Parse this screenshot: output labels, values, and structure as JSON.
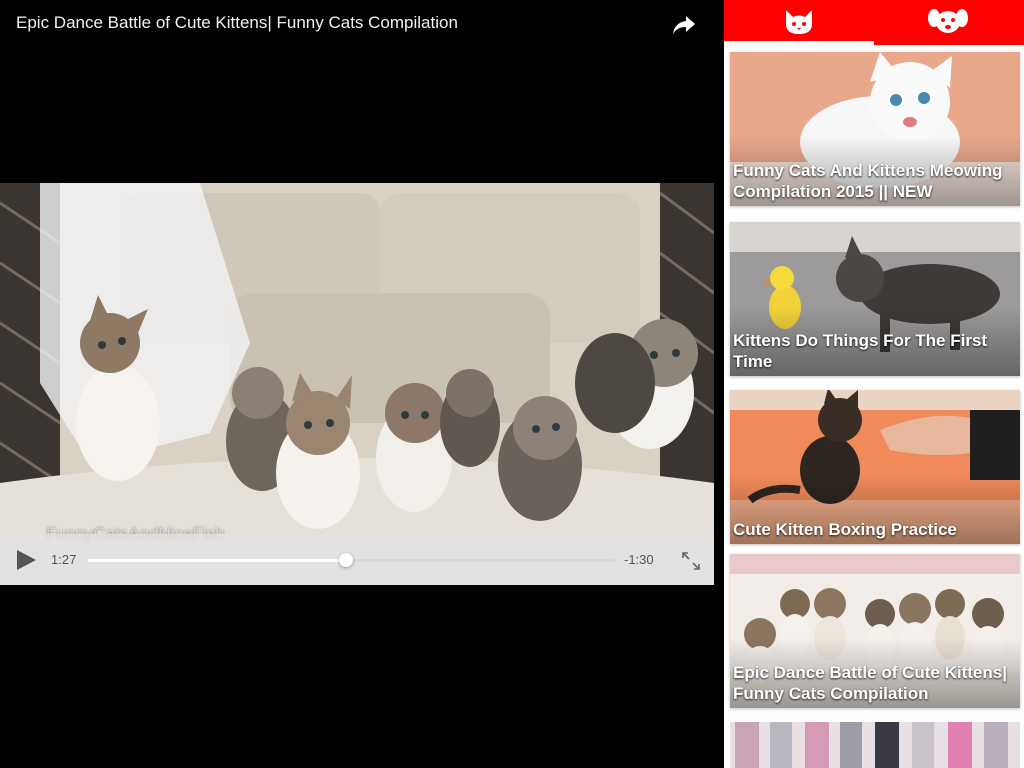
{
  "player": {
    "title": "Epic Dance Battle of Cute Kittens| Funny Cats Compilation",
    "watermark": "FunnyCatsAndNiceFish",
    "time_elapsed": "1:27",
    "time_remaining": "-1:30",
    "progress": 0.49
  },
  "icons": {
    "share": "share-arrow-icon",
    "play": "play-icon",
    "fullscreen": "expand-icon",
    "cat_tab": "cat-face-icon",
    "dog_tab": "dog-face-icon"
  },
  "tabs": [
    {
      "icon": "cat-face-icon",
      "active": true
    },
    {
      "icon": "dog-face-icon",
      "active": false
    }
  ],
  "videos": [
    {
      "title": "Funny Cats And Kittens Meowing Compilation 2015 || NEW"
    },
    {
      "title": "Kittens Do Things For The First Time"
    },
    {
      "title": "Cute Kitten Boxing Practice"
    },
    {
      "title": "Epic Dance Battle of Cute Kittens| Funny Cats Compilation"
    }
  ],
  "colors": {
    "accent": "#ff0000",
    "tab_indicator": "#ffffff",
    "player_bg": "#000000"
  }
}
